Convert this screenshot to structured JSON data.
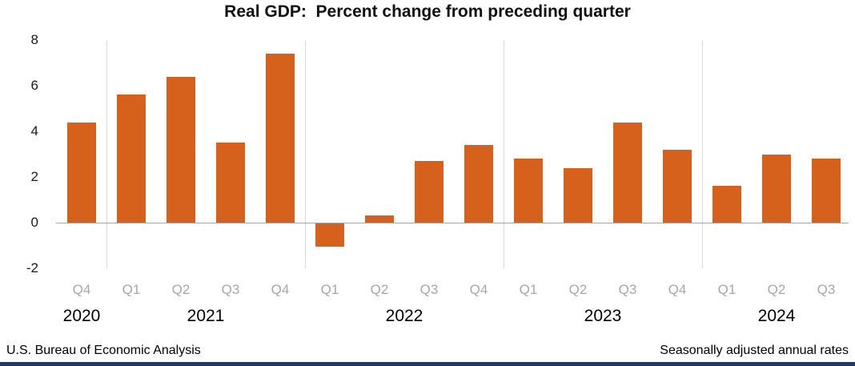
{
  "title": "Real GDP:  Percent change from preceding quarter",
  "footer": {
    "left": "U.S. Bureau of Economic Analysis",
    "right": "Seasonally adjusted annual rates"
  },
  "colors": {
    "bar": "#d5611d",
    "quarter_label": "#a6a6a6",
    "separator": "#d9d9d9",
    "axis_line": "#a6a6a6",
    "title_text": "#111111",
    "bottom_accent": "#1f3864"
  },
  "chart_data": {
    "type": "bar",
    "title": "Real GDP:  Percent change from preceding quarter",
    "categories": [
      "Q4",
      "Q1",
      "Q2",
      "Q3",
      "Q4",
      "Q1",
      "Q2",
      "Q3",
      "Q4",
      "Q1",
      "Q2",
      "Q3",
      "Q4",
      "Q1",
      "Q2",
      "Q3"
    ],
    "values": [
      4.4,
      5.6,
      6.4,
      3.5,
      7.4,
      -1.0,
      0.3,
      2.7,
      3.4,
      2.8,
      2.4,
      4.4,
      3.2,
      1.6,
      3.0,
      2.8
    ],
    "groups": [
      {
        "year": "2020",
        "count": 1
      },
      {
        "year": "2021",
        "count": 4
      },
      {
        "year": "2022",
        "count": 4
      },
      {
        "year": "2023",
        "count": 4
      },
      {
        "year": "2024",
        "count": 3
      }
    ],
    "ylim": [
      -2,
      8
    ],
    "yticks": [
      8,
      6,
      4,
      2,
      0,
      -2
    ],
    "xlabel": "",
    "ylabel": "",
    "grid": "vertical-year-separators-only",
    "legend": "none",
    "bar_color": "#d5611d",
    "notes_left": "U.S. Bureau of Economic Analysis",
    "notes_right": "Seasonally adjusted annual rates"
  }
}
